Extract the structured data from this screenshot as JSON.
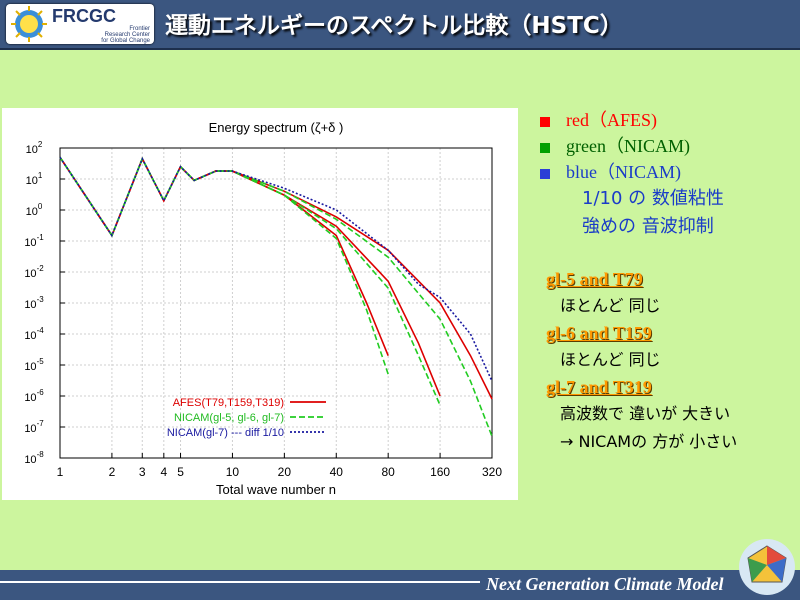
{
  "header": {
    "logo_title": "FRCGC",
    "logo_subtitle": "Frontier\nResearch Center\nfor Global Change",
    "slide_title": "運動エネルギーのスペクトル比較（HSTC）"
  },
  "legend_panel": {
    "items": [
      {
        "label": "red（AFES)",
        "color": "#ff0000",
        "text_color": "#ff0000"
      },
      {
        "label": "green（NICAM)",
        "color": "#00a000",
        "text_color": "#006000"
      },
      {
        "label": "blue（NICAM)",
        "color": "#2b3fd6",
        "text_color": "#1a3cc8"
      }
    ],
    "notes": [
      "1/10 の 数値粘性",
      "強めの 音波抑制"
    ]
  },
  "comparisons": [
    {
      "heading": "gl-5  and  T79",
      "text": "ほとんど 同じ"
    },
    {
      "heading": "gl-6 and T159",
      "text": "ほとんど 同じ"
    },
    {
      "heading": "gl-7  and  T319",
      "text": "高波数で 違いが 大きい",
      "text2": "→ NICAMの 方が 小さい"
    }
  ],
  "footer": {
    "text": "Next Generation Climate Model"
  },
  "colors": {
    "header_bg": "#3b5680",
    "slide_bg": "#ccf59e",
    "afes": "#dd0000",
    "nicam_green": "#22cc22",
    "nicam_blue": "#1a1aa0"
  },
  "chart_data": {
    "type": "line",
    "title": "Energy spectrum (ζ+δ )",
    "xlabel": "Total wave number n",
    "x_scale": "log",
    "y_scale": "log",
    "xlim": [
      1,
      320
    ],
    "ylim": [
      1e-08,
      100
    ],
    "x_ticks": [
      1,
      2,
      3,
      4,
      5,
      10,
      20,
      40,
      80,
      160,
      320
    ],
    "y_ticks": [
      {
        "v": 100,
        "m": "10",
        "e": "2"
      },
      {
        "v": 10,
        "m": "10",
        "e": "1"
      },
      {
        "v": 1,
        "m": "10",
        "e": "0"
      },
      {
        "v": 0.1,
        "m": "10",
        "e": "-1"
      },
      {
        "v": 0.01,
        "m": "10",
        "e": "-2"
      },
      {
        "v": 0.001,
        "m": "10",
        "e": "-3"
      },
      {
        "v": 0.0001,
        "m": "10",
        "e": "-4"
      },
      {
        "v": 1e-05,
        "m": "10",
        "e": "-5"
      },
      {
        "v": 1e-06,
        "m": "10",
        "e": "-6"
      },
      {
        "v": 1e-07,
        "m": "10",
        "e": "-7"
      },
      {
        "v": 1e-08,
        "m": "10",
        "e": "-8"
      }
    ],
    "grid": true,
    "legend_position": "bottom-left",
    "series": [
      {
        "name": "AFES(T79,T159,T319)",
        "color": "#dd0000",
        "style": "solid",
        "width": 1.6,
        "x": [
          1,
          2,
          3,
          4,
          5,
          6,
          8,
          10,
          20,
          40,
          60,
          80
        ],
        "y": [
          50,
          0.15,
          45,
          2,
          25,
          9,
          18,
          18,
          3,
          0.15,
          0.001,
          2e-05
        ]
      },
      {
        "name": "AFES(T79,T159,T319)",
        "color": "#dd0000",
        "style": "solid",
        "width": 1.6,
        "x": [
          1,
          2,
          3,
          4,
          5,
          6,
          8,
          10,
          20,
          40,
          80,
          120,
          160
        ],
        "y": [
          50,
          0.15,
          45,
          2,
          25,
          9,
          18,
          18,
          3,
          0.3,
          0.005,
          5e-05,
          1e-06
        ]
      },
      {
        "name": "AFES(T79,T159,T319)",
        "color": "#dd0000",
        "style": "solid",
        "width": 1.6,
        "x": [
          1,
          2,
          3,
          4,
          5,
          6,
          8,
          10,
          20,
          40,
          80,
          160,
          240,
          320
        ],
        "y": [
          50,
          0.15,
          45,
          2,
          25,
          9,
          18,
          18,
          4,
          0.6,
          0.05,
          0.001,
          2e-05,
          8e-07
        ]
      },
      {
        "name": "NICAM(gl-5, gl-6, gl-7)",
        "color": "#22cc22",
        "style": "dashed",
        "width": 1.6,
        "x": [
          1,
          2,
          3,
          4,
          5,
          6,
          8,
          10,
          20,
          40,
          60,
          80
        ],
        "y": [
          50,
          0.15,
          45,
          2,
          25,
          9,
          18,
          18,
          3,
          0.12,
          0.0006,
          5e-06
        ]
      },
      {
        "name": "NICAM(gl-5, gl-6, gl-7)",
        "color": "#22cc22",
        "style": "dashed",
        "width": 1.6,
        "x": [
          1,
          2,
          3,
          4,
          5,
          6,
          8,
          10,
          20,
          40,
          80,
          120,
          160
        ],
        "y": [
          50,
          0.15,
          45,
          2,
          25,
          9,
          18,
          18,
          3,
          0.25,
          0.003,
          2e-05,
          5e-07
        ]
      },
      {
        "name": "NICAM(gl-5, gl-6, gl-7)",
        "color": "#22cc22",
        "style": "dashed",
        "width": 1.6,
        "x": [
          1,
          2,
          3,
          4,
          5,
          6,
          8,
          10,
          20,
          40,
          80,
          160,
          240,
          320
        ],
        "y": [
          50,
          0.15,
          45,
          2,
          25,
          9,
          18,
          18,
          4,
          0.5,
          0.03,
          0.0003,
          3e-06,
          5e-08
        ]
      },
      {
        "name": "NICAM(gl-7) --- diff 1/10",
        "color": "#1a1aa0",
        "style": "dotted",
        "width": 1.6,
        "x": [
          1,
          2,
          3,
          4,
          5,
          6,
          8,
          10,
          20,
          40,
          80,
          120,
          160,
          240,
          320
        ],
        "y": [
          50,
          0.15,
          45,
          2,
          25,
          9,
          18,
          18,
          5,
          1,
          0.05,
          0.004,
          0.0015,
          0.0001,
          3e-06
        ]
      }
    ],
    "legend": [
      {
        "label": "AFES(T79,T159,T319)",
        "color": "#dd0000",
        "text_color": "#dd0000",
        "style": "solid"
      },
      {
        "label": "NICAM(gl-5, gl-6, gl-7)",
        "color": "#22cc22",
        "text_color": "#22bb22",
        "style": "dashed"
      },
      {
        "label": "NICAM(gl-7) --- diff 1/10",
        "color": "#1a1aa0",
        "text_color": "#1a1aa0",
        "style": "dotted"
      }
    ]
  }
}
